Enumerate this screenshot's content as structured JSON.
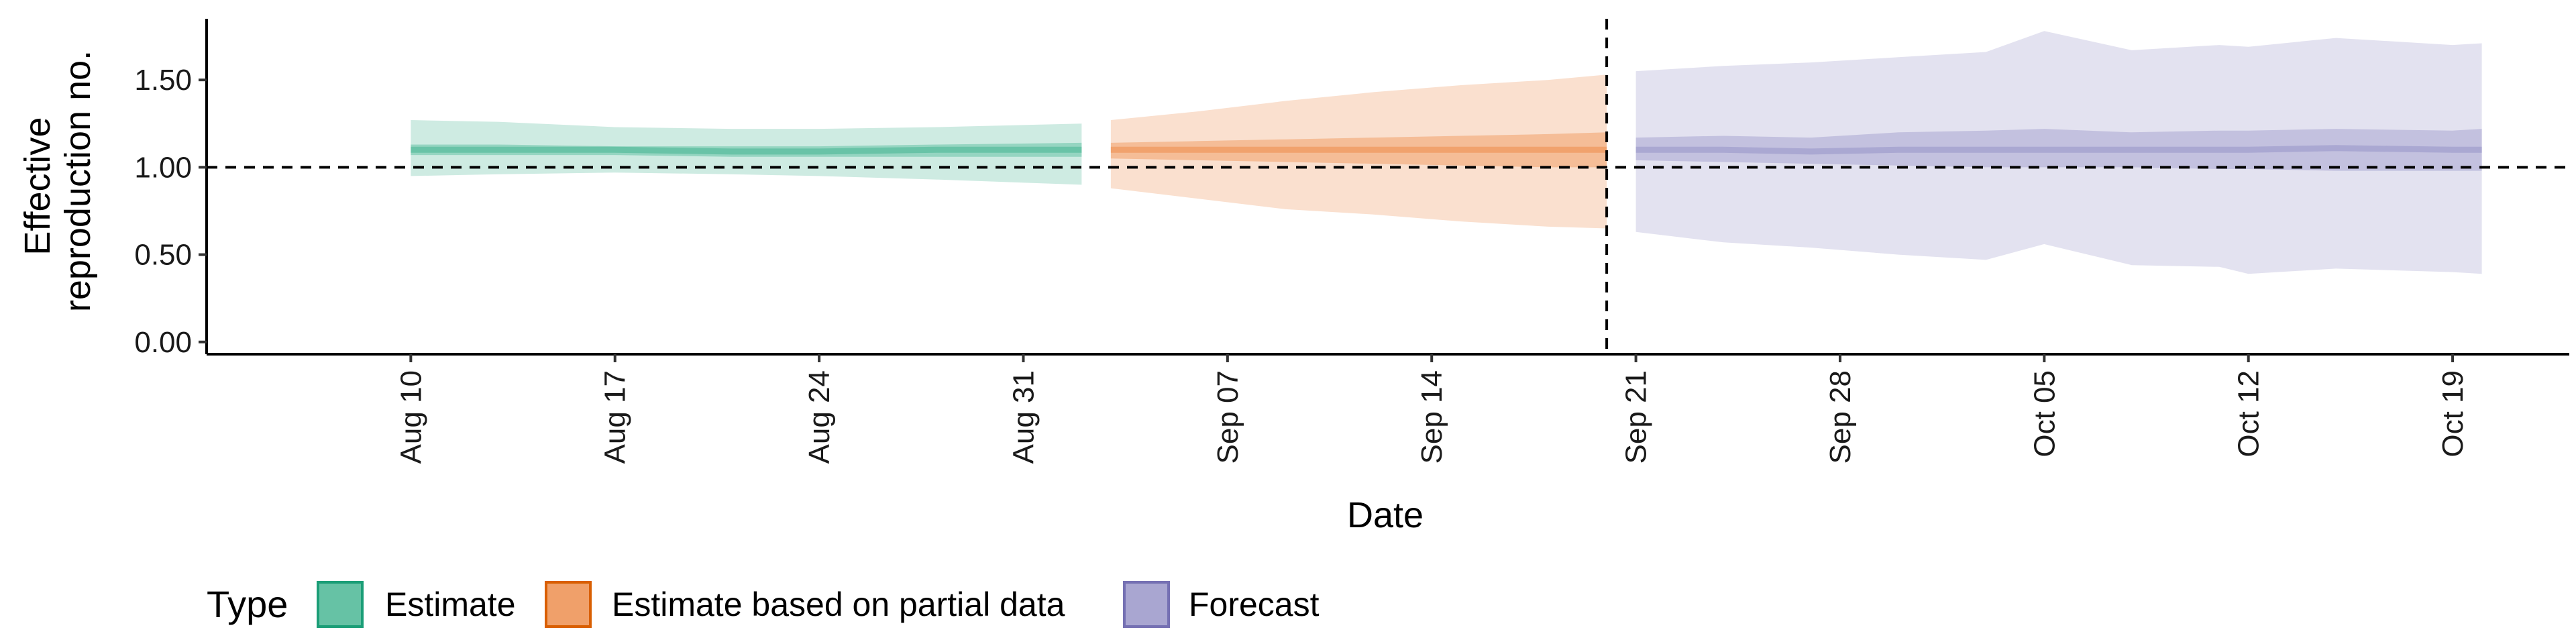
{
  "chart_data": {
    "type": "area",
    "title": "",
    "xlabel": "Date",
    "ylabel_lines": [
      "Effective",
      "reproduction no."
    ],
    "x_tick_labels": [
      "Aug 10",
      "Aug 17",
      "Aug 24",
      "Aug 31",
      "Sep 07",
      "Sep 14",
      "Sep 21",
      "Sep 28",
      "Oct 05",
      "Oct 12",
      "Oct 19"
    ],
    "x_tick_dates": [
      "2020-08-10",
      "2020-08-17",
      "2020-08-24",
      "2020-08-31",
      "2020-09-07",
      "2020-09-14",
      "2020-09-21",
      "2020-09-28",
      "2020-10-05",
      "2020-10-12",
      "2020-10-19"
    ],
    "xlim": [
      "2020-08-03",
      "2020-10-23"
    ],
    "y_ticks": [
      0,
      0.5,
      1,
      1.5
    ],
    "y_tick_labels": [
      "0.00",
      "0.50",
      "1.00",
      "1.50"
    ],
    "ylim": [
      -0.07,
      1.85
    ],
    "reference_line_y": 1.0,
    "forecast_date_line": "2020-09-20",
    "grid": false,
    "legend": {
      "title": "Type",
      "placement": "bottom-left",
      "entries": [
        "Estimate",
        "Estimate based on partial data",
        "Forecast"
      ]
    },
    "series": [
      {
        "name": "Estimate",
        "fill_color": "#66c2a5",
        "border_color": "#1b9e77",
        "x": [
          "2020-08-10",
          "2020-08-13",
          "2020-08-17",
          "2020-08-21",
          "2020-08-24",
          "2020-08-28",
          "2020-09-02"
        ],
        "median": [
          1.1,
          1.1,
          1.1,
          1.09,
          1.09,
          1.1,
          1.1
        ],
        "lower_50": [
          1.07,
          1.07,
          1.07,
          1.06,
          1.06,
          1.06,
          1.06
        ],
        "upper_50": [
          1.13,
          1.13,
          1.12,
          1.12,
          1.12,
          1.13,
          1.14
        ],
        "lower_90": [
          0.95,
          0.96,
          0.97,
          0.96,
          0.95,
          0.93,
          0.9
        ],
        "upper_90": [
          1.27,
          1.26,
          1.23,
          1.22,
          1.22,
          1.23,
          1.25
        ]
      },
      {
        "name": "Estimate based on partial data",
        "fill_color": "#f0a06a",
        "border_color": "#d95f02",
        "x": [
          "2020-09-03",
          "2020-09-06",
          "2020-09-09",
          "2020-09-12",
          "2020-09-15",
          "2020-09-18",
          "2020-09-20"
        ],
        "median": [
          1.1,
          1.1,
          1.1,
          1.1,
          1.1,
          1.1,
          1.1
        ],
        "lower_50": [
          1.05,
          1.04,
          1.03,
          1.02,
          1.01,
          1.0,
          1.0
        ],
        "upper_50": [
          1.14,
          1.15,
          1.16,
          1.17,
          1.18,
          1.19,
          1.2
        ],
        "lower_90": [
          0.88,
          0.82,
          0.76,
          0.73,
          0.69,
          0.66,
          0.65
        ],
        "upper_90": [
          1.27,
          1.32,
          1.38,
          1.43,
          1.47,
          1.5,
          1.53
        ]
      },
      {
        "name": "Forecast",
        "fill_color": "#a9a6d1",
        "border_color": "#7570b3",
        "x": [
          "2020-09-21",
          "2020-09-24",
          "2020-09-27",
          "2020-09-30",
          "2020-10-03",
          "2020-10-05",
          "2020-10-08",
          "2020-10-11",
          "2020-10-12",
          "2020-10-15",
          "2020-10-19",
          "2020-10-20"
        ],
        "median": [
          1.1,
          1.1,
          1.09,
          1.1,
          1.1,
          1.1,
          1.1,
          1.1,
          1.1,
          1.11,
          1.1,
          1.1
        ],
        "lower_50": [
          1.04,
          1.03,
          1.02,
          1.01,
          1.0,
          1.0,
          1.0,
          0.99,
          0.99,
          0.98,
          0.98,
          0.98
        ],
        "upper_50": [
          1.17,
          1.18,
          1.17,
          1.2,
          1.21,
          1.22,
          1.2,
          1.21,
          1.21,
          1.22,
          1.21,
          1.22
        ],
        "lower_90": [
          0.63,
          0.57,
          0.54,
          0.5,
          0.47,
          0.56,
          0.44,
          0.43,
          0.39,
          0.42,
          0.4,
          0.39
        ],
        "upper_90": [
          1.55,
          1.58,
          1.6,
          1.63,
          1.66,
          1.78,
          1.67,
          1.7,
          1.69,
          1.74,
          1.7,
          1.71
        ]
      }
    ]
  }
}
